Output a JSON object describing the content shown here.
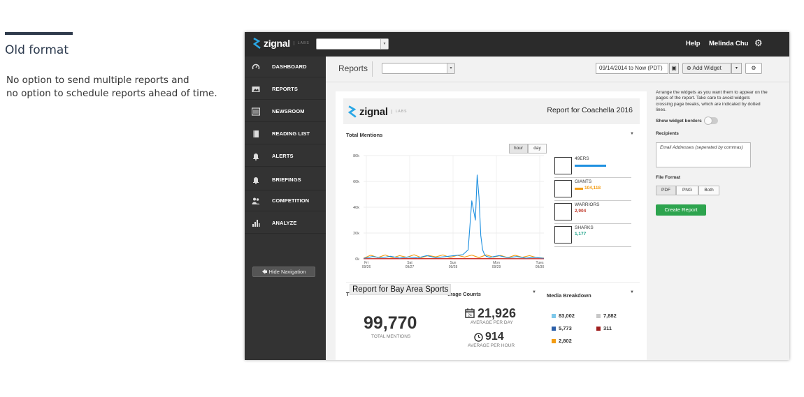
{
  "caption": {
    "title": "Old format",
    "line1": "No option to send multiple reports and",
    "line2": "no option to schedule reports ahead of time."
  },
  "topbar": {
    "logo_word": "zignal",
    "logo_labs": "LABS",
    "help": "Help",
    "user": "Melinda Chu"
  },
  "sidebar": {
    "items": [
      {
        "label": "DASHBOARD",
        "icon": "speedometer-icon"
      },
      {
        "label": "REPORTS",
        "icon": "image-icon"
      },
      {
        "label": "NEWSROOM",
        "icon": "newspaper-icon"
      },
      {
        "label": "READING LIST",
        "icon": "book-icon"
      },
      {
        "label": "ALERTS",
        "icon": "bell-icon"
      },
      {
        "label": "BRIEFINGS",
        "icon": "bell-icon"
      },
      {
        "label": "COMPETITION",
        "icon": "users-icon"
      },
      {
        "label": "ANALYZE",
        "icon": "bar-chart-icon"
      }
    ],
    "hide_nav": "Hide Navigation"
  },
  "header": {
    "title": "Reports",
    "date_range": "09/14/2014 to Now (PDT)",
    "add_widget": "Add Widget"
  },
  "report": {
    "title": "Report for Coachella 2016",
    "total_mentions_label": "Total Mentions",
    "hour": "hour",
    "day": "day",
    "legend": [
      {
        "name": "49ERS",
        "value": "",
        "color": "#1e90e0"
      },
      {
        "name": "GIANTS",
        "value": "104,118",
        "color": "#f39c12"
      },
      {
        "name": "WARRIORS",
        "value": "2,904",
        "color": "#c0392b"
      },
      {
        "name": "SHARKS",
        "value": "1,177",
        "color": "#16a085"
      }
    ],
    "tooltip": "Report for Bay Area Sports",
    "t_clip": "T",
    "avg_label": "erage Counts",
    "media_label": "Media Breakdown",
    "total_big": "99,770",
    "total_sub": "TOTAL MENTIONS",
    "avg_day": "21,926",
    "avg_day_sub": "AVERAGE PER DAY",
    "avg_hour": "914",
    "avg_hour_sub": "AVERAGE PER HOUR",
    "media": [
      {
        "value": "83,002",
        "color": "#7ec8ea"
      },
      {
        "value": "7,882",
        "color": "#c8c8c8"
      },
      {
        "value": "5,773",
        "color": "#2c5fa8"
      },
      {
        "value": "311",
        "color": "#a01e1e"
      },
      {
        "value": "2,802",
        "color": "#f39c12"
      }
    ]
  },
  "chart_data": {
    "type": "line",
    "x_ticks": [
      {
        "day": "Fri",
        "date": "09/26"
      },
      {
        "day": "Sat",
        "date": "09/27"
      },
      {
        "day": "Sun",
        "date": "09/28"
      },
      {
        "day": "Mon",
        "date": "09/29"
      },
      {
        "day": "Tues",
        "date": "09/30"
      }
    ],
    "y_ticks": [
      "0k",
      "20k",
      "40k",
      "60k",
      "80k"
    ],
    "ylim": [
      0,
      80000
    ],
    "x_range": [
      0,
      100
    ],
    "series": [
      {
        "name": "49ERS",
        "color": "#1e90e0",
        "x": [
          0,
          5,
          10,
          15,
          20,
          25,
          30,
          35,
          40,
          45,
          50,
          55,
          58,
          60,
          62,
          63,
          64,
          65,
          66,
          67,
          68,
          70,
          75,
          80,
          85,
          90,
          95,
          100
        ],
        "y": [
          300,
          1800,
          800,
          2000,
          600,
          1500,
          700,
          2500,
          900,
          1700,
          2500,
          3200,
          7000,
          45000,
          30000,
          65000,
          48000,
          18000,
          7000,
          3500,
          2000,
          1200,
          2500,
          800,
          1800,
          600,
          1200,
          400
        ]
      },
      {
        "name": "GIANTS",
        "color": "#f39c12",
        "x": [
          0,
          4,
          8,
          12,
          16,
          20,
          24,
          28,
          32,
          36,
          40,
          44,
          48,
          52,
          56,
          60,
          64,
          68,
          72,
          76,
          80,
          84,
          88,
          92,
          96,
          100
        ],
        "y": [
          500,
          2800,
          1000,
          3000,
          800,
          2500,
          1200,
          3200,
          900,
          2600,
          1500,
          3000,
          1100,
          2700,
          1400,
          2900,
          1000,
          3100,
          1300,
          2600,
          900,
          2800,
          1200,
          2500,
          1000,
          600
        ]
      },
      {
        "name": "WARRIORS",
        "color": "#c0392b",
        "x": [
          0,
          20,
          40,
          60,
          80,
          100
        ],
        "y": [
          150,
          250,
          200,
          300,
          180,
          150
        ]
      },
      {
        "name": "SHARKS",
        "color": "#16a085",
        "x": [
          0,
          20,
          40,
          60,
          80,
          100
        ],
        "y": [
          80,
          120,
          90,
          150,
          100,
          80
        ]
      }
    ]
  },
  "right_panel": {
    "instructions": "Arrange the widgets as you want them to appear on the pages of the report. Take care to avoid widgets crossing page breaks, which are indicated by dotted lines.",
    "show_borders": "Show widget borders",
    "recipients": "Recipients",
    "email_placeholder": "Email Addresses (seperated by commas)",
    "file_format": "File Format",
    "pdf": "PDF",
    "png": "PNG",
    "both": "Both",
    "create": "Create Report"
  }
}
